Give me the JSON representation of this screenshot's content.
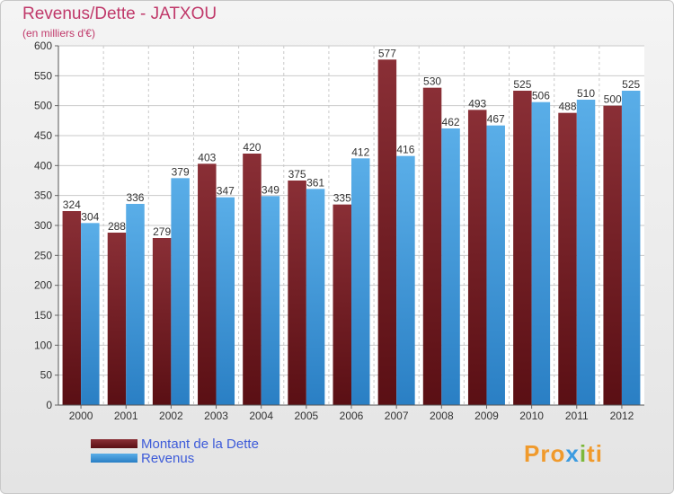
{
  "title": "Revenus/Dette - JATXOU",
  "subtitle": "(en milliers d'€)",
  "logo": {
    "p1": "Pro",
    "x": "x",
    "i": "i",
    "end": "ti"
  },
  "chart_data": {
    "type": "bar",
    "categories": [
      "2000",
      "2001",
      "2002",
      "2003",
      "2004",
      "2005",
      "2006",
      "2007",
      "2008",
      "2009",
      "2010",
      "2011",
      "2012"
    ],
    "series": [
      {
        "name": "Montant de la Dette",
        "color": "#7b2a30",
        "values": [
          324,
          288,
          279,
          403,
          420,
          375,
          335,
          577,
          530,
          493,
          525,
          488,
          500
        ]
      },
      {
        "name": "Revenus",
        "color": "#3a9be0",
        "values": [
          304,
          336,
          379,
          347,
          349,
          361,
          412,
          416,
          462,
          467,
          506,
          510,
          525
        ]
      }
    ],
    "ylim": [
      0,
      600
    ],
    "yticks": [
      0,
      50,
      100,
      150,
      200,
      250,
      300,
      350,
      400,
      450,
      500,
      550,
      600
    ],
    "grid": true,
    "legend_position": "bottom-left"
  }
}
